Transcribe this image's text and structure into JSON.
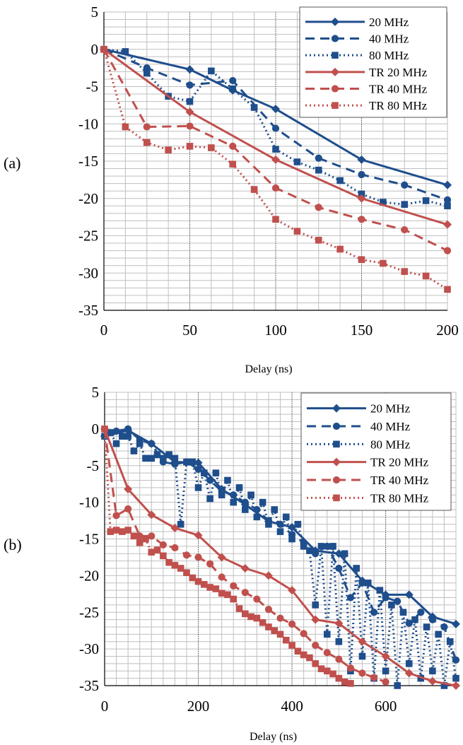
{
  "colors": {
    "blue": "#1f4e8c",
    "red": "#c0504d",
    "grid": "#bfbfbf",
    "axis": "#000000"
  },
  "chart_data": [
    {
      "type": "line",
      "panel_label": "(a)",
      "xlabel": "Delay (ns)",
      "ylabel": "",
      "xlim": [
        0,
        200
      ],
      "ylim": [
        -35,
        5
      ],
      "xticks": [
        0,
        50,
        100,
        150,
        200
      ],
      "yticks": [
        5,
        0,
        -5,
        -10,
        -15,
        -20,
        -25,
        -30,
        -35
      ],
      "grid": true,
      "legend": "top-right",
      "series": [
        {
          "name": "20 MHz",
          "color": "blue",
          "dash": "solid",
          "marker": "diamond",
          "x": [
            0,
            50,
            75,
            100,
            150,
            200
          ],
          "y": [
            0,
            -2.7,
            -5.5,
            -8,
            -14.8,
            -18.2
          ]
        },
        {
          "name": "40 MHz",
          "color": "blue",
          "dash": "dash",
          "marker": "circle",
          "x": [
            0,
            25,
            50,
            75,
            100,
            125,
            150,
            175,
            200
          ],
          "y": [
            0,
            -2.5,
            -4.8,
            -4.2,
            -10.6,
            -14.6,
            -16.8,
            -18.2,
            -20.2
          ]
        },
        {
          "name": "80 MHz",
          "color": "blue",
          "dash": "dot",
          "marker": "square",
          "x": [
            0,
            12.5,
            25,
            37.5,
            50,
            62.5,
            75,
            87.5,
            100,
            112.5,
            125,
            137.5,
            150,
            162.5,
            175,
            187.5,
            200
          ],
          "y": [
            0,
            -0.3,
            -3.2,
            -6.3,
            -7,
            -2.9,
            -5.3,
            -7.8,
            -13.4,
            -15.1,
            -16.2,
            -17.6,
            -19.4,
            -20.5,
            -20.8,
            -20.3,
            -21
          ]
        },
        {
          "name": "TR 20 MHz",
          "color": "red",
          "dash": "solid",
          "marker": "diamond",
          "x": [
            0,
            50,
            100,
            150,
            200
          ],
          "y": [
            0,
            -8.4,
            -14.8,
            -20,
            -23.5
          ]
        },
        {
          "name": "TR 40 MHz",
          "color": "red",
          "dash": "dash",
          "marker": "circle",
          "x": [
            0,
            25,
            50,
            75,
            100,
            125,
            150,
            175,
            200
          ],
          "y": [
            0,
            -10.4,
            -10.3,
            -13,
            -18.6,
            -21.2,
            -22.8,
            -24.2,
            -27
          ]
        },
        {
          "name": "TR 80 MHz",
          "color": "red",
          "dash": "dot",
          "marker": "square",
          "x": [
            0,
            12.5,
            25,
            37.5,
            50,
            62.5,
            75,
            87.5,
            100,
            112.5,
            125,
            137.5,
            150,
            162.5,
            175,
            187.5,
            200
          ],
          "y": [
            0,
            -10.4,
            -12.5,
            -13.5,
            -13,
            -13.2,
            -15.4,
            -18.8,
            -22.8,
            -24.4,
            -25.6,
            -26.8,
            -28.2,
            -28.7,
            -29.8,
            -30.4,
            -32.2
          ]
        }
      ]
    },
    {
      "type": "line",
      "panel_label": "(b)",
      "xlabel": "Delay (ns)",
      "ylabel": "",
      "xlim": [
        0,
        750
      ],
      "ylim": [
        -35,
        5
      ],
      "xticks": [
        0,
        200,
        400,
        600
      ],
      "yticks": [
        5,
        0,
        -5,
        -10,
        -15,
        -20,
        -25,
        -30,
        -35
      ],
      "grid": true,
      "legend": "top-right",
      "series": [
        {
          "name": "20 MHz",
          "color": "blue",
          "dash": "solid",
          "marker": "diamond",
          "x": [
            0,
            50,
            100,
            150,
            200,
            250,
            300,
            350,
            400,
            450,
            500,
            550,
            600,
            650,
            700,
            750
          ],
          "y": [
            -1,
            -0.2,
            -2,
            -4.5,
            -4.6,
            -8.2,
            -10.3,
            -12.6,
            -13.4,
            -16.6,
            -17,
            -20.7,
            -22.6,
            -22.6,
            -25.6,
            -26.6
          ]
        },
        {
          "name": "40 MHz",
          "color": "blue",
          "dash": "dash",
          "marker": "circle",
          "x": [
            0,
            25,
            50,
            75,
            100,
            125,
            150,
            175,
            200,
            225,
            250,
            275,
            300,
            325,
            350,
            375,
            400,
            425,
            450,
            475,
            500,
            525,
            550,
            575,
            600,
            625,
            650,
            675,
            700,
            725,
            750
          ],
          "y": [
            -1,
            -0.3,
            0,
            -1.5,
            -2,
            -4.5,
            -4.8,
            -4.5,
            -5.5,
            -7,
            -8.5,
            -9,
            -10,
            -11,
            -12.5,
            -13,
            -14.4,
            -15.5,
            -17,
            -16,
            -19,
            -23,
            -21,
            -25,
            -23,
            -23.5,
            -26.5,
            -25,
            -26,
            -27,
            -31.5
          ]
        },
        {
          "name": "80 MHz",
          "color": "blue",
          "dash": "dot",
          "marker": "square",
          "x": [
            0,
            12.5,
            25,
            37.5,
            50,
            62.5,
            75,
            87.5,
            100,
            112.5,
            125,
            137.5,
            150,
            162.5,
            175,
            187.5,
            200,
            212.5,
            225,
            237.5,
            250,
            262.5,
            275,
            287.5,
            300,
            312.5,
            325,
            337.5,
            350,
            362.5,
            375,
            387.5,
            400,
            412.5,
            425,
            437.5,
            450,
            462.5,
            475,
            487.5,
            500,
            512.5,
            525,
            537.5,
            550,
            562.5,
            575,
            587.5,
            600,
            612.5,
            625,
            637.5,
            650,
            662.5,
            675,
            687.5,
            700,
            712.5,
            725,
            737.5,
            750
          ],
          "y": [
            -1,
            -0.5,
            -2,
            -1,
            -1,
            -3,
            -2,
            -4,
            -4,
            -3.5,
            -4,
            -3.5,
            -4,
            -13,
            -4.5,
            -4.5,
            -8,
            -6,
            -9.5,
            -6,
            -9,
            -7,
            -10,
            -8,
            -11,
            -9,
            -12,
            -10,
            -13,
            -11,
            -14,
            -12,
            -15,
            -13,
            -16,
            -16.6,
            -24,
            -16,
            -28,
            -16,
            -29,
            -17,
            -33,
            -19,
            -31,
            -21,
            -34,
            -22,
            -33,
            -24,
            -35,
            -25,
            -32,
            -26,
            -34,
            -27,
            -33,
            -28,
            -35,
            -29,
            -34
          ]
        },
        {
          "name": "TR 20 MHz",
          "color": "red",
          "dash": "solid",
          "marker": "diamond",
          "x": [
            0,
            50,
            100,
            150,
            200,
            250,
            300,
            350,
            400,
            450,
            500,
            550,
            600,
            650,
            700,
            750
          ],
          "y": [
            0,
            -8.2,
            -11.7,
            -13.5,
            -14.5,
            -17.5,
            -19,
            -20,
            -22,
            -26,
            -26.5,
            -29,
            -31,
            -33.3,
            -34.4,
            -35
          ]
        },
        {
          "name": "TR 40 MHz",
          "color": "red",
          "dash": "dash",
          "marker": "circle",
          "x": [
            0,
            25,
            50,
            75,
            100,
            125,
            150,
            175,
            200,
            225,
            250,
            275,
            300,
            325,
            350,
            375,
            400,
            425,
            450,
            475,
            500,
            525,
            550,
            575,
            600
          ],
          "y": [
            0,
            -11.8,
            -10.9,
            -14.6,
            -14.6,
            -15.8,
            -16.2,
            -17.2,
            -17.5,
            -18.4,
            -20.2,
            -21.4,
            -22.3,
            -23.2,
            -24.6,
            -25.8,
            -26.6,
            -27.9,
            -29.5,
            -30.5,
            -31.4,
            -32.6,
            -33.3,
            -33.9,
            -34.5
          ]
        },
        {
          "name": "TR 80 MHz",
          "color": "red",
          "dash": "dot",
          "marker": "square",
          "x": [
            0,
            12.5,
            25,
            37.5,
            50,
            62.5,
            75,
            87.5,
            100,
            112.5,
            125,
            137.5,
            150,
            162.5,
            175,
            187.5,
            200,
            212.5,
            225,
            237.5,
            250,
            262.5,
            275,
            287.5,
            300,
            312.5,
            325,
            337.5,
            350,
            362.5,
            375,
            387.5,
            400,
            412.5,
            425,
            437.5,
            450,
            462.5,
            475,
            487.5,
            500,
            512.5,
            525
          ],
          "y": [
            0,
            -14,
            -13.8,
            -14,
            -13.8,
            -14.6,
            -15.5,
            -15,
            -16.8,
            -16.5,
            -17.3,
            -18.2,
            -18.6,
            -19,
            -19.6,
            -20.3,
            -20.8,
            -21.2,
            -21.6,
            -21.8,
            -22.4,
            -22.6,
            -23.2,
            -24.5,
            -25.2,
            -25.6,
            -25.8,
            -26.4,
            -27,
            -27.5,
            -28,
            -28.8,
            -29.5,
            -30.3,
            -30.8,
            -31.2,
            -32,
            -32.7,
            -33,
            -33.4,
            -34,
            -34.5,
            -34.7
          ]
        }
      ]
    }
  ]
}
